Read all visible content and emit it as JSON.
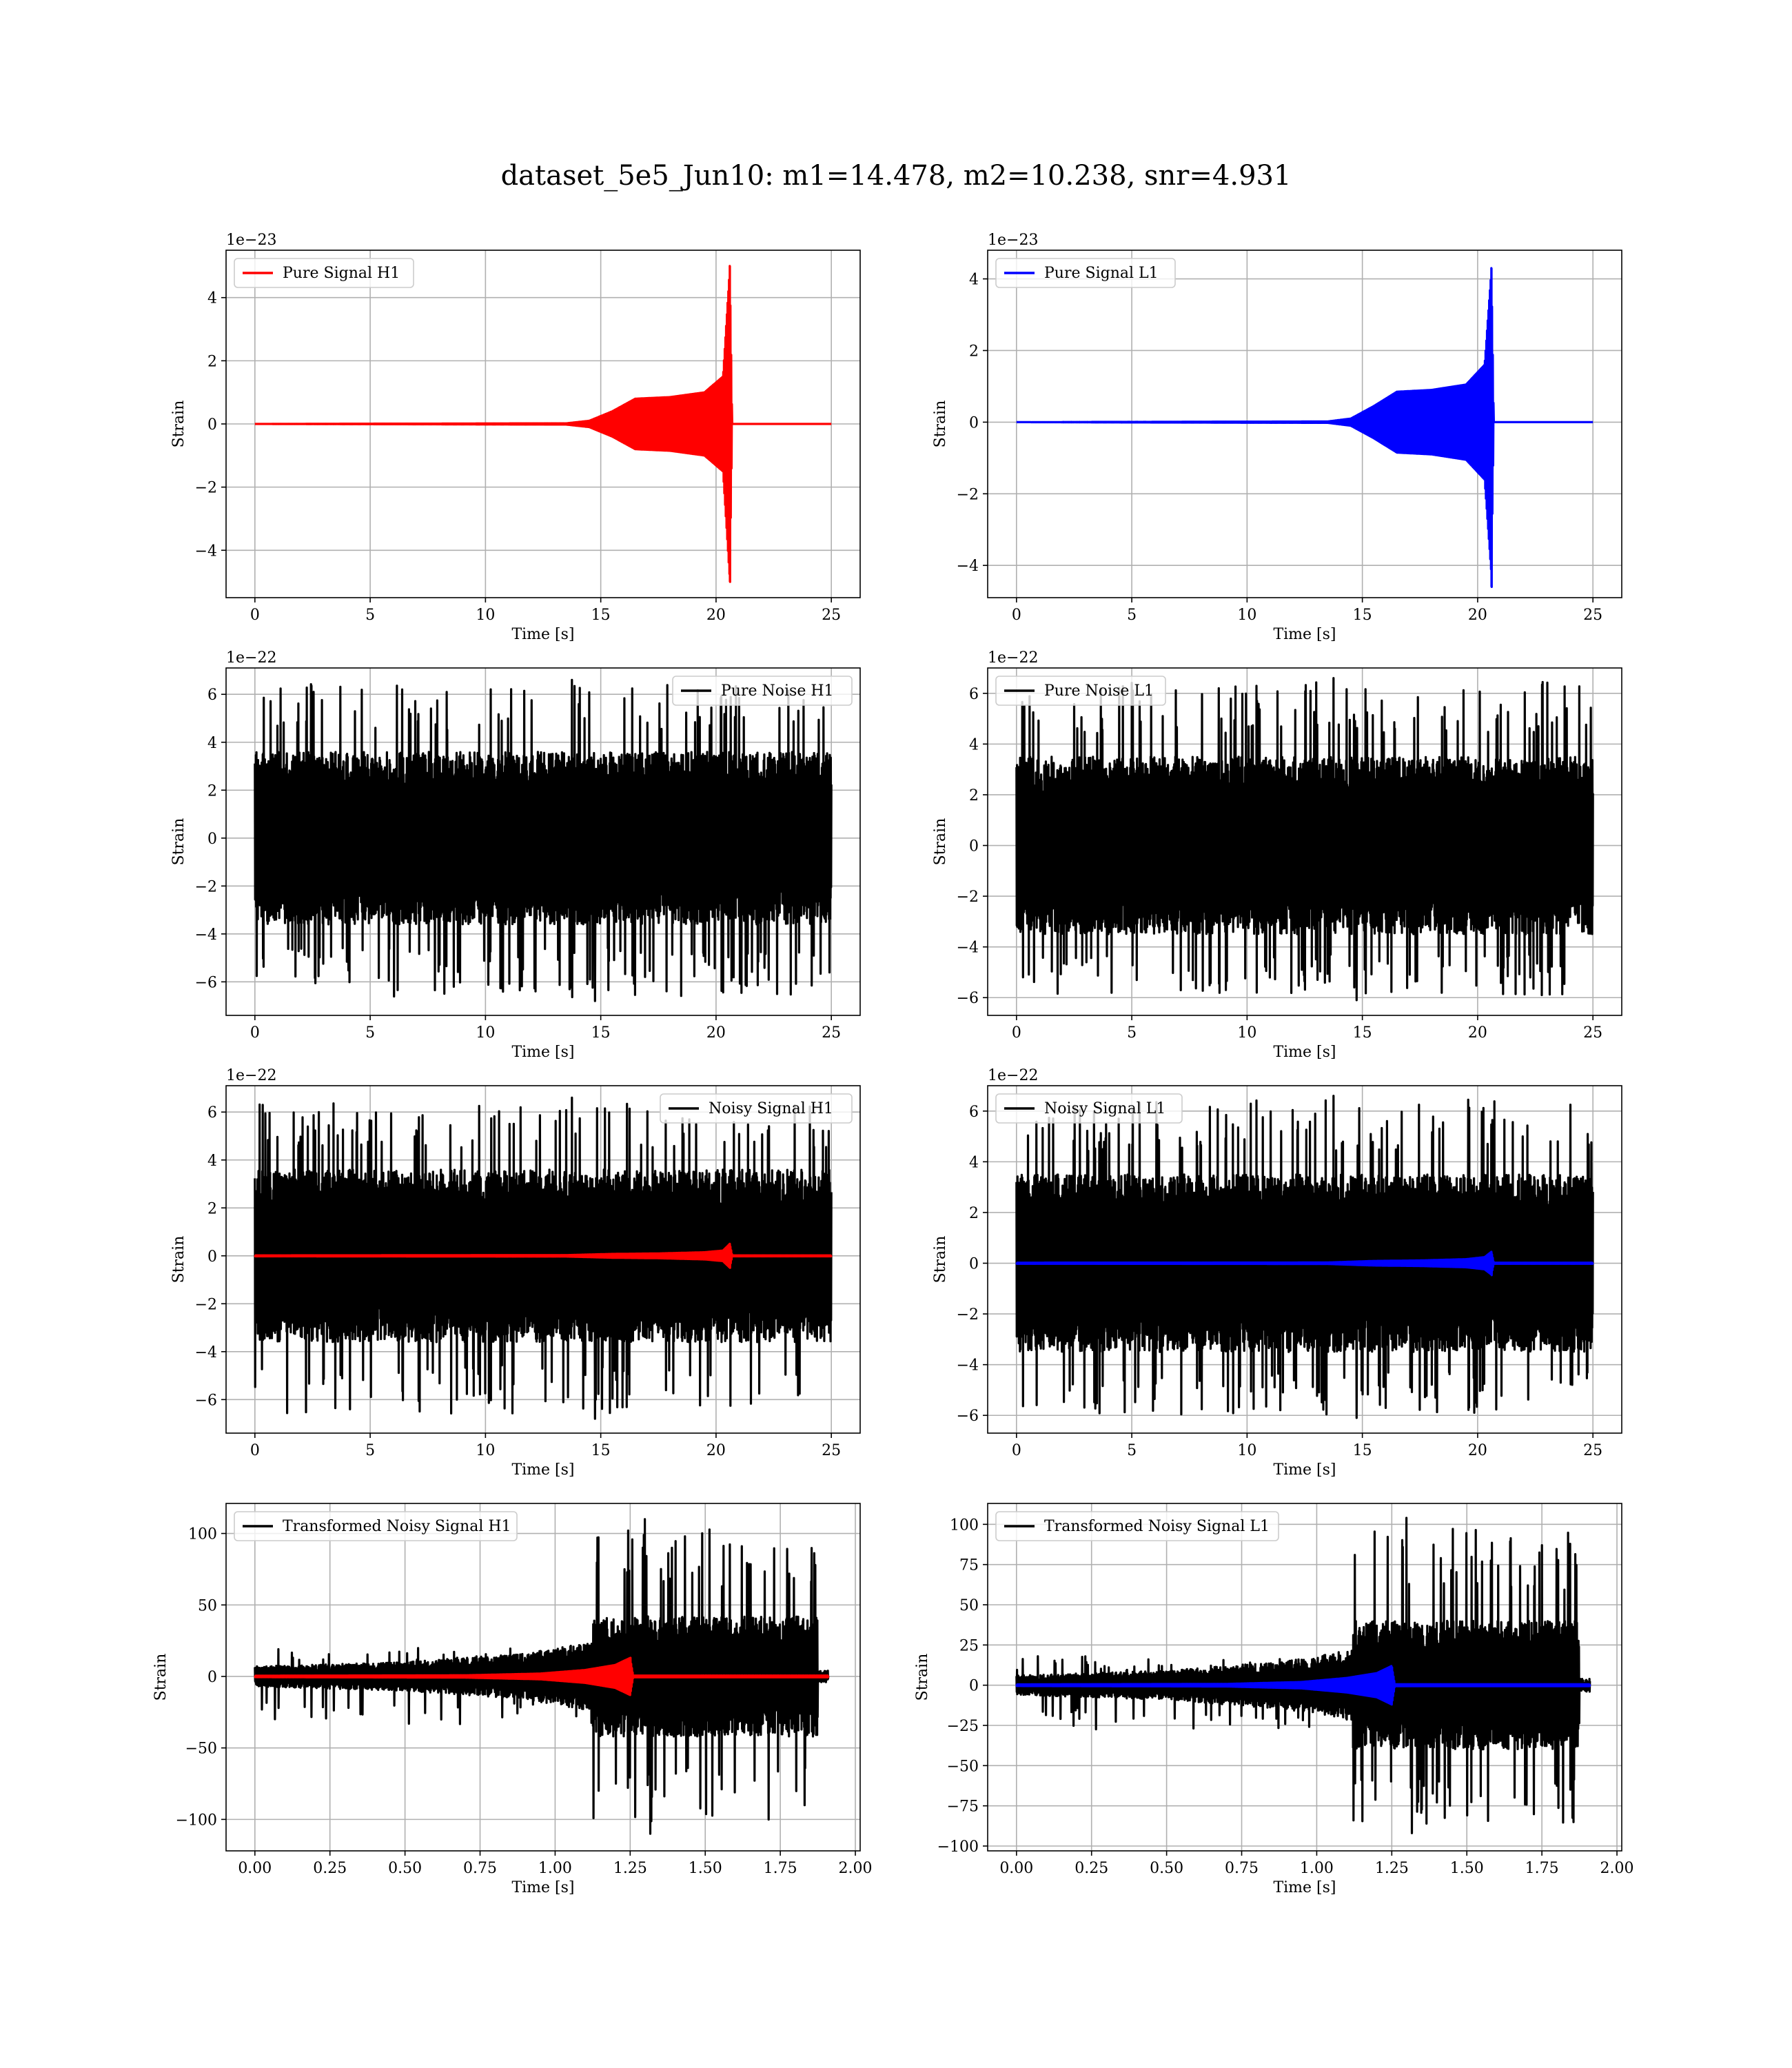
{
  "figure": {
    "title": "dataset_5e5_Jun10: m1=14.478, m2=10.238, snr=4.931"
  },
  "colors": {
    "h1": "#ff0000",
    "l1": "#0000ff",
    "noise": "#000000",
    "grid": "#b0b0b0"
  },
  "chart_data": [
    {
      "type": "line",
      "panel": "pure-signal-h1",
      "legend": "top-left",
      "legend_entries": [
        "Pure Signal H1"
      ],
      "xlabel": "Time [s]",
      "ylabel": "Strain",
      "offset_text": "1e−23",
      "xlim": [
        -1.25,
        26.25
      ],
      "ylim": [
        -5.5,
        5.5
      ],
      "xticks": [
        0,
        5,
        10,
        15,
        20,
        25
      ],
      "xticklabels": [
        "0",
        "5",
        "10",
        "15",
        "20",
        "25"
      ],
      "yticks": [
        -4,
        -2,
        0,
        2,
        4
      ],
      "yticklabels": [
        "−4",
        "−2",
        "0",
        "2",
        "4"
      ],
      "grid": true,
      "series": [
        {
          "name": "Pure Signal H1",
          "color": "#ff0000",
          "kind": "chirp",
          "t_start": 0,
          "t_end": 25,
          "merger_time": 20.6,
          "peak_pos": 5.0,
          "peak_neg": -5.0,
          "envelope": [
            [
              0,
              0
            ],
            [
              13.5,
              0.02
            ],
            [
              14.5,
              0.1
            ],
            [
              15.5,
              0.4
            ],
            [
              16.5,
              0.8
            ],
            [
              18,
              0.85
            ],
            [
              19.5,
              1.0
            ],
            [
              20.3,
              1.5
            ],
            [
              20.6,
              5.0
            ],
            [
              20.7,
              0
            ],
            [
              25,
              0
            ]
          ]
        }
      ]
    },
    {
      "type": "line",
      "panel": "pure-signal-l1",
      "legend": "top-left",
      "legend_entries": [
        "Pure Signal L1"
      ],
      "xlabel": "Time [s]",
      "ylabel": "Strain",
      "offset_text": "1e−23",
      "xlim": [
        -1.25,
        26.25
      ],
      "ylim": [
        -4.9,
        4.8
      ],
      "xticks": [
        0,
        5,
        10,
        15,
        20,
        25
      ],
      "xticklabels": [
        "0",
        "5",
        "10",
        "15",
        "20",
        "25"
      ],
      "yticks": [
        -4,
        -2,
        0,
        2,
        4
      ],
      "yticklabels": [
        "−4",
        "−2",
        "0",
        "2",
        "4"
      ],
      "grid": true,
      "series": [
        {
          "name": "Pure Signal L1",
          "color": "#0000ff",
          "kind": "chirp",
          "t_start": 0,
          "t_end": 25,
          "merger_time": 20.6,
          "peak_pos": 4.3,
          "peak_neg": -4.6,
          "envelope": [
            [
              0,
              0
            ],
            [
              13.5,
              0.02
            ],
            [
              14.5,
              0.1
            ],
            [
              15.5,
              0.45
            ],
            [
              16.5,
              0.85
            ],
            [
              18,
              0.9
            ],
            [
              19.5,
              1.05
            ],
            [
              20.3,
              1.6
            ],
            [
              20.6,
              4.3
            ],
            [
              20.7,
              0
            ],
            [
              25,
              0
            ]
          ]
        }
      ]
    },
    {
      "type": "line",
      "panel": "pure-noise-h1",
      "legend": "top-right",
      "legend_entries": [
        "Pure Noise H1"
      ],
      "xlabel": "Time [s]",
      "ylabel": "Strain",
      "offset_text": "1e−22",
      "xlim": [
        -1.25,
        26.25
      ],
      "ylim": [
        -7.4,
        7.1
      ],
      "xticks": [
        0,
        5,
        10,
        15,
        20,
        25
      ],
      "xticklabels": [
        "0",
        "5",
        "10",
        "15",
        "20",
        "25"
      ],
      "yticks": [
        -6,
        -4,
        -2,
        0,
        2,
        4,
        6
      ],
      "yticklabels": [
        "−6",
        "−4",
        "−2",
        "0",
        "2",
        "4",
        "6"
      ],
      "grid": true,
      "series": [
        {
          "name": "Pure Noise H1",
          "color": "#000000",
          "kind": "noise",
          "t_start": 0,
          "t_end": 25,
          "core": 3.6,
          "spike_max": 6.6,
          "spike_min": -6.8
        }
      ]
    },
    {
      "type": "line",
      "panel": "pure-noise-l1",
      "legend": "top-left",
      "legend_entries": [
        "Pure Noise L1"
      ],
      "xlabel": "Time [s]",
      "ylabel": "Strain",
      "offset_text": "1e−22",
      "xlim": [
        -1.25,
        26.25
      ],
      "ylim": [
        -6.7,
        7.0
      ],
      "xticks": [
        0,
        5,
        10,
        15,
        20,
        25
      ],
      "xticklabels": [
        "0",
        "5",
        "10",
        "15",
        "20",
        "25"
      ],
      "yticks": [
        -6,
        -4,
        -2,
        0,
        2,
        4,
        6
      ],
      "yticklabels": [
        "−6",
        "−4",
        "−2",
        "0",
        "2",
        "4",
        "6"
      ],
      "grid": true,
      "series": [
        {
          "name": "Pure Noise L1",
          "color": "#000000",
          "kind": "noise",
          "t_start": 0,
          "t_end": 25,
          "core": 3.5,
          "spike_max": 6.6,
          "spike_min": -6.1
        }
      ]
    },
    {
      "type": "line",
      "panel": "noisy-signal-h1",
      "legend": "top-right",
      "legend_entries": [
        "Noisy Signal H1"
      ],
      "xlabel": "Time [s]",
      "ylabel": "Strain",
      "offset_text": "1e−22",
      "xlim": [
        -1.25,
        26.25
      ],
      "ylim": [
        -7.4,
        7.1
      ],
      "xticks": [
        0,
        5,
        10,
        15,
        20,
        25
      ],
      "xticklabels": [
        "0",
        "5",
        "10",
        "15",
        "20",
        "25"
      ],
      "yticks": [
        -6,
        -4,
        -2,
        0,
        2,
        4,
        6
      ],
      "yticklabels": [
        "−6",
        "−4",
        "−2",
        "0",
        "2",
        "4",
        "6"
      ],
      "grid": true,
      "series": [
        {
          "name": "Noisy Signal H1",
          "color": "#000000",
          "kind": "noise",
          "t_start": 0,
          "t_end": 25,
          "core": 3.6,
          "spike_max": 6.6,
          "spike_min": -6.8
        },
        {
          "color": "#ff0000",
          "kind": "chirp",
          "t_start": 0,
          "t_end": 25,
          "merger_time": 20.6,
          "peak_pos": 0.5,
          "peak_neg": -0.5,
          "envelope": [
            [
              0,
              0.02
            ],
            [
              13.5,
              0.03
            ],
            [
              15.5,
              0.08
            ],
            [
              17.5,
              0.1
            ],
            [
              19.5,
              0.15
            ],
            [
              20.3,
              0.22
            ],
            [
              20.6,
              0.5
            ],
            [
              20.7,
              0.02
            ],
            [
              25,
              0.02
            ]
          ]
        }
      ]
    },
    {
      "type": "line",
      "panel": "noisy-signal-l1",
      "legend": "top-left",
      "legend_entries": [
        "Noisy Signal L1"
      ],
      "xlabel": "Time [s]",
      "ylabel": "Strain",
      "offset_text": "1e−22",
      "xlim": [
        -1.25,
        26.25
      ],
      "ylim": [
        -6.7,
        7.0
      ],
      "xticks": [
        0,
        5,
        10,
        15,
        20,
        25
      ],
      "xticklabels": [
        "0",
        "5",
        "10",
        "15",
        "20",
        "25"
      ],
      "yticks": [
        -6,
        -4,
        -2,
        0,
        2,
        4,
        6
      ],
      "yticklabels": [
        "−6",
        "−4",
        "−2",
        "0",
        "2",
        "4",
        "6"
      ],
      "grid": true,
      "series": [
        {
          "name": "Noisy Signal L1",
          "color": "#000000",
          "kind": "noise",
          "t_start": 0,
          "t_end": 25,
          "core": 3.5,
          "spike_max": 6.6,
          "spike_min": -6.1
        },
        {
          "color": "#0000ff",
          "kind": "chirp",
          "t_start": 0,
          "t_end": 25,
          "merger_time": 20.6,
          "peak_pos": 0.45,
          "peak_neg": -0.47,
          "envelope": [
            [
              0,
              0.02
            ],
            [
              13.5,
              0.03
            ],
            [
              15.5,
              0.09
            ],
            [
              17.5,
              0.11
            ],
            [
              19.5,
              0.16
            ],
            [
              20.3,
              0.24
            ],
            [
              20.6,
              0.45
            ],
            [
              20.7,
              0.02
            ],
            [
              25,
              0.02
            ]
          ]
        }
      ]
    },
    {
      "type": "line",
      "panel": "transformed-noisy-signal-h1",
      "legend": "top-left",
      "legend_entries": [
        "Transformed Noisy Signal H1"
      ],
      "xlabel": "Time [s]",
      "ylabel": "Strain",
      "offset_text": "",
      "xlim": [
        -0.096,
        2.016
      ],
      "ylim": [
        -122,
        121
      ],
      "xticks": [
        0.0,
        0.25,
        0.5,
        0.75,
        1.0,
        1.25,
        1.5,
        1.75,
        2.0
      ],
      "xticklabels": [
        "0.00",
        "0.25",
        "0.50",
        "0.75",
        "1.00",
        "1.25",
        "1.50",
        "1.75",
        "2.00"
      ],
      "yticks": [
        -100,
        -50,
        0,
        50,
        100
      ],
      "yticklabels": [
        "−100",
        "−50",
        "0",
        "50",
        "100"
      ],
      "grid": true,
      "series": [
        {
          "name": "Transformed Noisy Signal H1",
          "color": "#000000",
          "kind": "whitened",
          "t_start": 0,
          "t_end": 1.91,
          "step_time": 1.12,
          "step_end": 1.875,
          "early_envelope": [
            [
              0,
              7
            ],
            [
              0.5,
              10
            ],
            [
              0.9,
              16
            ],
            [
              1.12,
              24
            ]
          ],
          "late_core": 42,
          "spike_max": 110,
          "spike_min": -110,
          "early_spike_max": 20,
          "early_spike_min": -35,
          "tail_amp": 4
        },
        {
          "color": "#ff0000",
          "kind": "chirp",
          "t_start": 0,
          "t_end": 1.91,
          "merger_time": 1.25,
          "peak_pos": 13,
          "peak_neg": -13,
          "envelope": [
            [
              0,
              0.5
            ],
            [
              0.7,
              0.8
            ],
            [
              0.95,
              2
            ],
            [
              1.1,
              4.5
            ],
            [
              1.2,
              8
            ],
            [
              1.25,
              13
            ],
            [
              1.26,
              0.6
            ],
            [
              1.91,
              0.6
            ]
          ]
        }
      ]
    },
    {
      "type": "line",
      "panel": "transformed-noisy-signal-l1",
      "legend": "top-left",
      "legend_entries": [
        "Transformed Noisy Signal L1"
      ],
      "xlabel": "Time [s]",
      "ylabel": "Strain",
      "offset_text": "",
      "xlim": [
        -0.096,
        2.016
      ],
      "ylim": [
        -103,
        113
      ],
      "xticks": [
        0.0,
        0.25,
        0.5,
        0.75,
        1.0,
        1.25,
        1.5,
        1.75,
        2.0
      ],
      "xticklabels": [
        "0.00",
        "0.25",
        "0.50",
        "0.75",
        "1.00",
        "1.25",
        "1.50",
        "1.75",
        "2.00"
      ],
      "yticks": [
        -100,
        -75,
        -50,
        -25,
        0,
        25,
        50,
        75,
        100
      ],
      "yticklabels": [
        "−100",
        "−75",
        "−50",
        "−25",
        "0",
        "25",
        "50",
        "75",
        "100"
      ],
      "grid": true,
      "series": [
        {
          "name": "Transformed Noisy Signal L1",
          "color": "#000000",
          "kind": "whitened",
          "t_start": 0,
          "t_end": 1.91,
          "step_time": 1.12,
          "step_end": 1.875,
          "early_envelope": [
            [
              0,
              6
            ],
            [
              0.5,
              9
            ],
            [
              0.9,
              15
            ],
            [
              1.12,
              22
            ]
          ],
          "late_core": 40,
          "spike_max": 104,
          "spike_min": -92,
          "early_spike_max": 18,
          "early_spike_min": -28,
          "tail_amp": 4
        },
        {
          "color": "#0000ff",
          "kind": "chirp",
          "t_start": 0,
          "t_end": 1.91,
          "merger_time": 1.25,
          "peak_pos": 11,
          "peak_neg": -12,
          "envelope": [
            [
              0,
              0.5
            ],
            [
              0.7,
              0.8
            ],
            [
              0.95,
              2
            ],
            [
              1.1,
              4.5
            ],
            [
              1.2,
              7.5
            ],
            [
              1.25,
              12
            ],
            [
              1.26,
              0.6
            ],
            [
              1.91,
              0.6
            ]
          ]
        }
      ]
    }
  ]
}
